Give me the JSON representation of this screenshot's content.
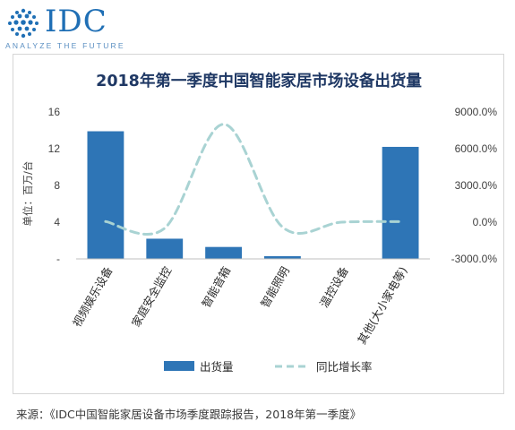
{
  "header": {
    "logo_text": "IDC",
    "tagline": "ANALYZE THE FUTURE"
  },
  "chart_data": {
    "type": "bar",
    "title": "2018年第一季度中国智能家居市场设备出货量",
    "ylabel": "单位：百万/台",
    "categories": [
      "视频娱乐设备",
      "家庭安全监控",
      "智能音箱",
      "智能照明",
      "温控设备",
      "其他(大小家电等)"
    ],
    "series": [
      {
        "name": "出货量",
        "type": "bar",
        "axis": "left",
        "values": [
          13.9,
          2.2,
          1.3,
          0.3,
          0,
          12.2
        ]
      },
      {
        "name": "同比增长率",
        "type": "line",
        "axis": "right",
        "style": "dashed-smooth",
        "values": [
          50,
          -500,
          8000,
          -400,
          0,
          50
        ]
      }
    ],
    "ylim": [
      0,
      16
    ],
    "y_ticks": [
      "16",
      "12",
      "8",
      "4",
      "-"
    ],
    "y2lim": [
      -3000,
      9000
    ],
    "y2_ticks": [
      "9000.0%",
      "6000.0%",
      "3000.0%",
      "0.0%",
      "-3000.0%"
    ],
    "legend_position": "bottom",
    "grid": false,
    "colors": {
      "bar": "#2e75b6",
      "line": "#a9d3d3",
      "title": "#1f3864",
      "axis_text": "#404040"
    }
  },
  "footer": {
    "source": "来源：《IDC中国智能家居设备市场季度跟踪报告，2018年第一季度》"
  }
}
